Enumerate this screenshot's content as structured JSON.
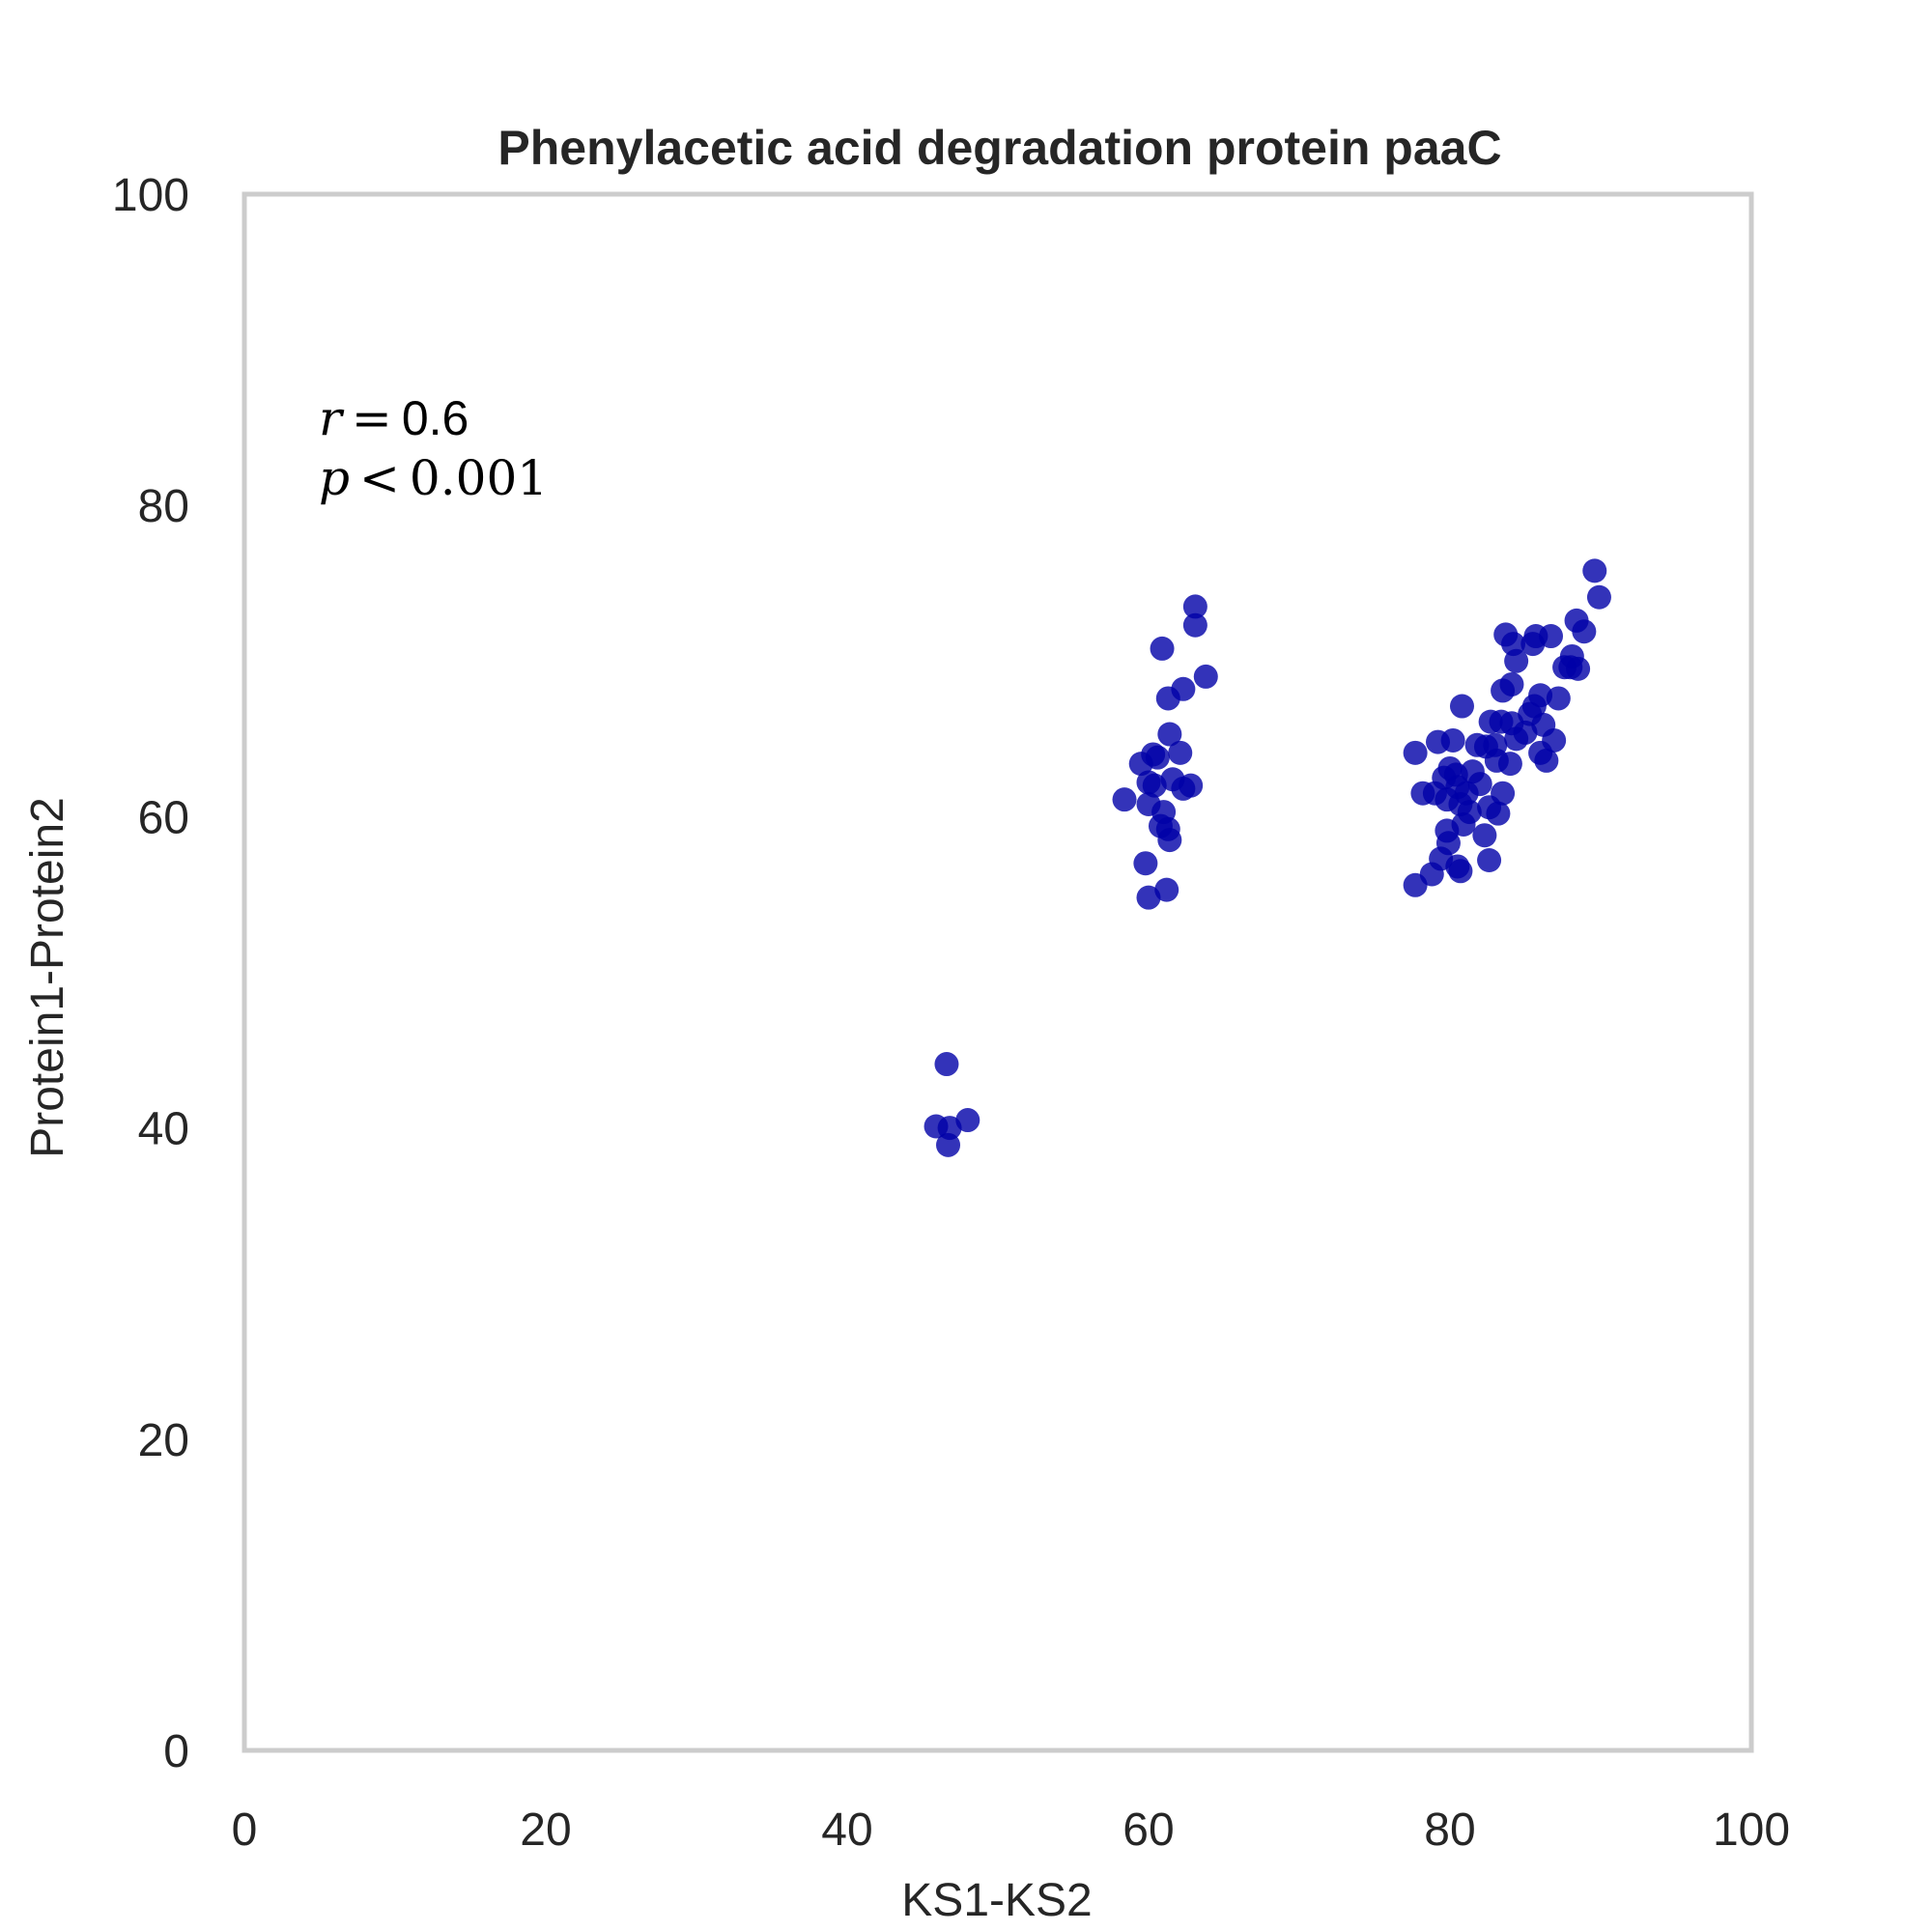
{
  "chart_data": {
    "type": "scatter",
    "title": "Phenylacetic acid degradation protein paaC",
    "xlabel": "KS1-KS2",
    "ylabel": "Protein1-Protein2",
    "xlim": [
      0,
      100
    ],
    "ylim": [
      0,
      100
    ],
    "xticks": [
      0,
      20,
      40,
      60,
      80,
      100
    ],
    "yticks": [
      0,
      20,
      40,
      60,
      80,
      100
    ],
    "grid": false,
    "marker_color": "#0000a8",
    "marker_alpha": 0.8,
    "frame_color": "#cccccc",
    "annotation": {
      "r_label": "r",
      "r_eq": "=",
      "r_value": "0.6",
      "p_label": "p",
      "p_op": "<",
      "p_value": "0.001"
    },
    "points": [
      [
        46.6,
        44.1
      ],
      [
        45.9,
        40.1
      ],
      [
        46.8,
        40.0
      ],
      [
        48.0,
        40.5
      ],
      [
        46.7,
        38.9
      ],
      [
        63.1,
        73.5
      ],
      [
        63.1,
        72.3
      ],
      [
        60.9,
        70.8
      ],
      [
        63.8,
        69.0
      ],
      [
        62.3,
        68.2
      ],
      [
        61.3,
        67.6
      ],
      [
        61.4,
        65.3
      ],
      [
        60.3,
        64.0
      ],
      [
        60.6,
        63.8
      ],
      [
        62.1,
        64.1
      ],
      [
        59.5,
        63.4
      ],
      [
        58.4,
        61.1
      ],
      [
        60.0,
        62.2
      ],
      [
        60.4,
        62.0
      ],
      [
        61.6,
        62.4
      ],
      [
        62.8,
        62.0
      ],
      [
        62.3,
        61.8
      ],
      [
        60.0,
        60.8
      ],
      [
        61.0,
        60.3
      ],
      [
        60.8,
        59.4
      ],
      [
        61.3,
        59.2
      ],
      [
        61.4,
        58.5
      ],
      [
        59.8,
        57.0
      ],
      [
        61.2,
        55.3
      ],
      [
        60.0,
        54.8
      ],
      [
        89.6,
        75.8
      ],
      [
        89.9,
        74.1
      ],
      [
        88.4,
        72.6
      ],
      [
        88.9,
        71.9
      ],
      [
        83.7,
        71.7
      ],
      [
        84.2,
        71.1
      ],
      [
        85.5,
        71.1
      ],
      [
        85.7,
        71.6
      ],
      [
        86.7,
        71.6
      ],
      [
        84.4,
        70.0
      ],
      [
        88.1,
        70.3
      ],
      [
        87.6,
        69.6
      ],
      [
        88.0,
        69.6
      ],
      [
        88.5,
        69.5
      ],
      [
        84.1,
        68.5
      ],
      [
        83.5,
        68.1
      ],
      [
        86.0,
        67.8
      ],
      [
        87.2,
        67.6
      ],
      [
        85.6,
        67.1
      ],
      [
        85.3,
        66.6
      ],
      [
        80.8,
        67.1
      ],
      [
        82.7,
        66.1
      ],
      [
        83.4,
        66.1
      ],
      [
        84.1,
        66.0
      ],
      [
        86.2,
        65.9
      ],
      [
        85.0,
        65.4
      ],
      [
        84.4,
        65.0
      ],
      [
        86.9,
        64.9
      ],
      [
        79.2,
        64.8
      ],
      [
        80.2,
        64.9
      ],
      [
        81.8,
        64.6
      ],
      [
        83.0,
        64.6
      ],
      [
        86.0,
        64.1
      ],
      [
        82.4,
        64.5
      ],
      [
        77.7,
        64.1
      ],
      [
        84.0,
        63.4
      ],
      [
        83.1,
        63.6
      ],
      [
        86.4,
        63.6
      ],
      [
        80.0,
        63.1
      ],
      [
        80.4,
        62.7
      ],
      [
        81.5,
        62.9
      ],
      [
        79.6,
        62.5
      ],
      [
        82.0,
        62.1
      ],
      [
        78.2,
        61.5
      ],
      [
        79.0,
        61.5
      ],
      [
        80.5,
        61.9
      ],
      [
        81.1,
        61.5
      ],
      [
        83.5,
        61.5
      ],
      [
        79.8,
        61.1
      ],
      [
        80.7,
        60.8
      ],
      [
        82.6,
        60.6
      ],
      [
        83.2,
        60.2
      ],
      [
        81.3,
        60.3
      ],
      [
        80.9,
        59.5
      ],
      [
        79.8,
        59.1
      ],
      [
        82.3,
        58.8
      ],
      [
        79.9,
        58.3
      ],
      [
        79.4,
        57.3
      ],
      [
        80.5,
        56.8
      ],
      [
        80.7,
        56.5
      ],
      [
        82.6,
        57.2
      ],
      [
        78.8,
        56.3
      ],
      [
        77.7,
        55.6
      ]
    ]
  }
}
